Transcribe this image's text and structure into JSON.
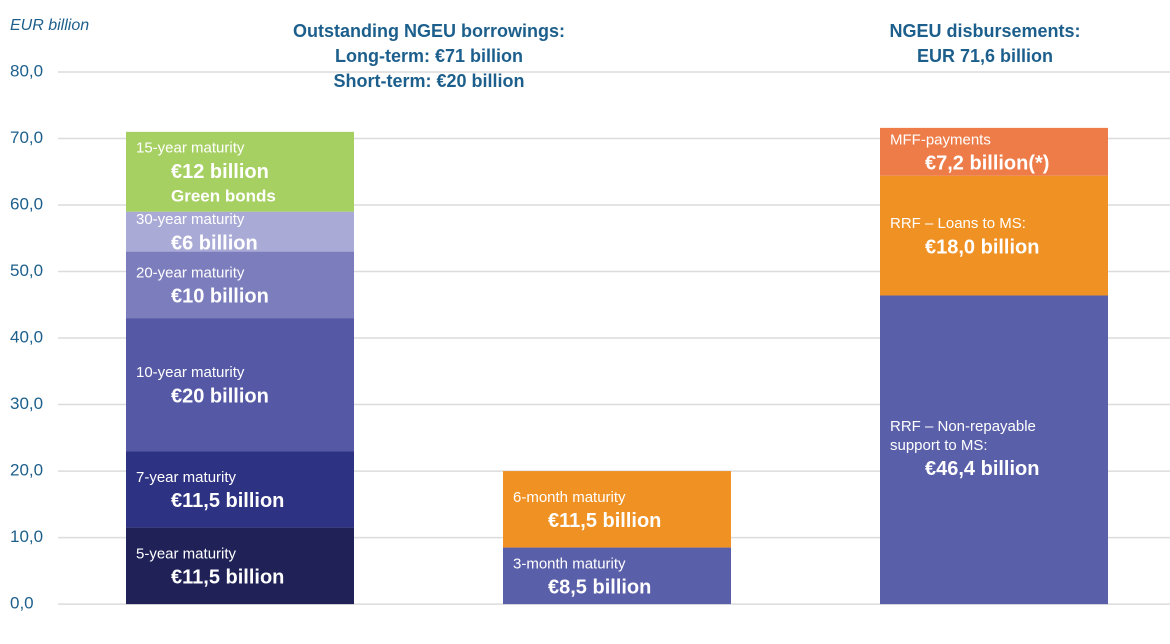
{
  "chart_data": {
    "type": "bar",
    "y_label": "EUR billion",
    "ylim": [
      -6,
      80
    ],
    "yticks": [
      {
        "value": 0,
        "label": "0,0"
      },
      {
        "value": 10,
        "label": "10,0"
      },
      {
        "value": 20,
        "label": "20,0"
      },
      {
        "value": 30,
        "label": "30,0"
      },
      {
        "value": 40,
        "label": "40,0"
      },
      {
        "value": 50,
        "label": "50,0"
      },
      {
        "value": 60,
        "label": "60,0"
      },
      {
        "value": 70,
        "label": "70,0"
      },
      {
        "value": 80,
        "label": "80,0"
      }
    ],
    "grid": true,
    "headings": [
      [
        "Outstanding NGEU borrowings:",
        "Long-term: €71 billion",
        "Short-term: €20 billion"
      ],
      [
        "NGEU disbursements:",
        "EUR 71,6 billion"
      ]
    ],
    "bars": [
      {
        "segments": [
          {
            "name": "5-year maturity",
            "value": 11.5,
            "value_label": "€11,5 billion",
            "color": "#1f2157"
          },
          {
            "name": "7-year maturity",
            "value": 11.5,
            "value_label": "€11,5 billion",
            "color": "#2e3282"
          },
          {
            "name": "10-year maturity",
            "value": 20,
            "value_label": "€20 billion",
            "color": "#5559a5"
          },
          {
            "name": "20-year maturity",
            "value": 10,
            "value_label": "€10 billion",
            "color": "#7c7dbd"
          },
          {
            "name": "30-year maturity",
            "value": 6,
            "value_label": "€6 billion",
            "color": "#aaaad6"
          },
          {
            "name": "15-year maturity",
            "value": 12,
            "value_label": "€12 billion",
            "note": "Green bonds",
            "color": "#a7d063"
          }
        ]
      },
      {
        "segments": [
          {
            "name": "3-month maturity",
            "value": 8.5,
            "value_label": "€8,5 billion",
            "color": "#5a5fa9"
          },
          {
            "name": "6-month maturity",
            "value": 11.5,
            "value_label": "€11,5 billion",
            "color": "#ef9123"
          }
        ]
      },
      {
        "segments": [
          {
            "name": "RRF – Non-repayable support to MS:",
            "value": 46.4,
            "value_label": "€46,4 billion",
            "color": "#5a5fa9"
          },
          {
            "name": "RRF – Loans to MS:",
            "value": 18.0,
            "value_label": "€18,0 billion",
            "color": "#ef9123"
          },
          {
            "name": "MFF-payments",
            "value": 7.2,
            "value_label": "€7,2 billion(*)",
            "color": "#ee7c49"
          }
        ]
      }
    ]
  }
}
